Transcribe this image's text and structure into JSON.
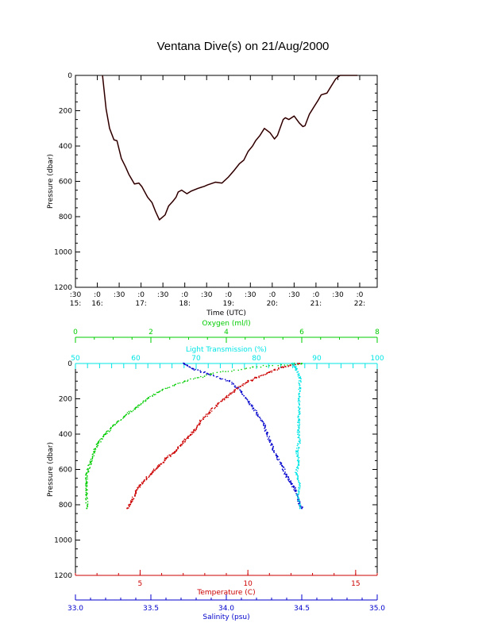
{
  "page": {
    "title": "Ventana Dive(s) on 21/Aug/2000"
  },
  "chart_data": [
    {
      "type": "line",
      "title": "Ventana Dive(s) on 21/Aug/2000",
      "xlabel": "Time (UTC)",
      "ylabel": "Pressure (dbar)",
      "x_unit": "hours UTC",
      "xlim": [
        15.5,
        22.4
      ],
      "ylim": [
        1200,
        0
      ],
      "y_ticks": [
        "0",
        "200",
        "400",
        "600",
        "800",
        "1000",
        "1200"
      ],
      "x_ticks": [
        {
          "x": 15.5,
          "top": ":30",
          "bottom": "15:"
        },
        {
          "x": 16.0,
          "top": ":0",
          "bottom": "16:"
        },
        {
          "x": 16.5,
          "top": ":30",
          "bottom": ""
        },
        {
          "x": 17.0,
          "top": ":0",
          "bottom": "17:"
        },
        {
          "x": 17.5,
          "top": ":30",
          "bottom": ""
        },
        {
          "x": 18.0,
          "top": ":0",
          "bottom": "18:"
        },
        {
          "x": 18.5,
          "top": ":30",
          "bottom": ""
        },
        {
          "x": 19.0,
          "top": ":0",
          "bottom": "19:"
        },
        {
          "x": 19.5,
          "top": ":30",
          "bottom": ""
        },
        {
          "x": 20.0,
          "top": ":0",
          "bottom": "20:"
        },
        {
          "x": 20.5,
          "top": ":30",
          "bottom": ""
        },
        {
          "x": 21.0,
          "top": ":0",
          "bottom": "21:"
        },
        {
          "x": 21.5,
          "top": ":30",
          "bottom": ""
        },
        {
          "x": 22.0,
          "top": ":0",
          "bottom": "22:"
        }
      ],
      "grid": false,
      "series": [
        {
          "color": "#000000",
          "x": [
            16.12,
            16.2,
            16.28,
            16.38,
            16.45,
            16.55,
            16.65,
            16.72,
            16.85,
            16.95,
            17.02,
            17.15,
            17.25,
            17.33,
            17.42,
            17.55,
            17.63,
            17.72,
            17.8,
            17.85,
            17.93,
            18.05,
            18.15,
            18.3,
            18.45,
            18.52,
            18.7,
            18.85,
            19.0,
            19.12,
            19.25,
            19.35,
            19.45,
            19.55,
            19.62,
            19.72,
            19.82,
            19.95,
            20.05,
            20.12,
            20.25,
            20.3,
            20.38,
            20.5,
            20.62,
            20.7,
            20.75,
            20.85,
            20.95,
            21.05,
            21.12,
            21.25,
            21.35,
            21.45,
            21.55,
            21.65,
            21.75,
            21.85,
            21.95
          ],
          "y": [
            0,
            190,
            300,
            365,
            370,
            470,
            520,
            560,
            615,
            610,
            630,
            690,
            720,
            770,
            818,
            790,
            740,
            715,
            690,
            660,
            650,
            670,
            655,
            640,
            628,
            620,
            605,
            610,
            575,
            540,
            500,
            480,
            430,
            400,
            370,
            340,
            300,
            325,
            360,
            340,
            250,
            240,
            250,
            230,
            270,
            290,
            285,
            220,
            180,
            140,
            110,
            100,
            60,
            20,
            0,
            0,
            0,
            0,
            0
          ]
        }
      ]
    },
    {
      "type": "scatter",
      "ylabel": "Pressure (dbar)",
      "ylim": [
        1200,
        0
      ],
      "y_ticks": [
        "0",
        "200",
        "400",
        "600",
        "800",
        "1000",
        "1200"
      ],
      "grid": false,
      "axes": [
        {
          "id": "oxygen",
          "label": "Oxygen (ml/l)",
          "position": "top",
          "color": "#00cc00",
          "range": [
            0,
            8
          ],
          "ticks": [
            "0",
            "2",
            "4",
            "6",
            "8"
          ]
        },
        {
          "id": "transmission",
          "label": "Light Transmission (%)",
          "position": "top-inner",
          "color": "#00e5e5",
          "range": [
            50,
            100
          ],
          "ticks": [
            "50",
            "60",
            "70",
            "80",
            "90",
            "100"
          ]
        },
        {
          "id": "temperature",
          "label": "Temperature (C)",
          "position": "bottom",
          "color": "#cc0000",
          "range": [
            2,
            16
          ],
          "ticks": [
            "5",
            "10",
            "15"
          ]
        },
        {
          "id": "salinity",
          "label": "Salinity (psu)",
          "position": "bottom-outer",
          "color": "#0000cc",
          "range": [
            33.0,
            35.0
          ],
          "ticks": [
            "33.0",
            "33.5",
            "34.0",
            "34.5",
            "35.0"
          ]
        }
      ],
      "series": [
        {
          "axis": "temperature",
          "color": "#cc0000",
          "x": [
            12.4,
            11.6,
            11.0,
            10.4,
            9.9,
            9.4,
            9.0,
            8.6,
            8.2,
            7.8,
            7.5,
            7.2,
            6.9,
            6.6,
            6.2,
            5.9,
            5.6,
            5.3,
            5.0,
            4.8,
            4.6,
            4.4
          ],
          "y": [
            0,
            20,
            50,
            80,
            110,
            150,
            190,
            230,
            280,
            330,
            380,
            420,
            460,
            500,
            540,
            580,
            610,
            650,
            690,
            730,
            780,
            820
          ]
        },
        {
          "axis": "salinity",
          "color": "#0000cc",
          "x": [
            33.72,
            33.78,
            33.88,
            34.02,
            34.1,
            34.15,
            34.2,
            34.25,
            34.27,
            34.3,
            34.33,
            34.37,
            34.4,
            34.43,
            34.46,
            34.48,
            34.5
          ],
          "y": [
            0,
            30,
            60,
            100,
            160,
            220,
            280,
            340,
            400,
            460,
            520,
            580,
            640,
            680,
            720,
            780,
            820
          ]
        },
        {
          "axis": "oxygen",
          "color": "#00cc00",
          "x": [
            6.0,
            4.7,
            3.6,
            2.9,
            2.3,
            1.9,
            1.6,
            1.3,
            1.0,
            0.8,
            0.6,
            0.5,
            0.4,
            0.3,
            0.3,
            0.3,
            0.3
          ],
          "y": [
            0,
            20,
            60,
            100,
            150,
            200,
            250,
            300,
            350,
            400,
            450,
            500,
            560,
            620,
            680,
            740,
            820
          ]
        },
        {
          "axis": "transmission",
          "color": "#00e5e5",
          "x": [
            86.0,
            86.6,
            87.2,
            87.2,
            87.0,
            87.1,
            87.0,
            86.9,
            87.1,
            86.7,
            87.0,
            86.6,
            87.2,
            86.8,
            87.2
          ],
          "y": [
            0,
            30,
            80,
            140,
            200,
            260,
            320,
            380,
            440,
            500,
            560,
            620,
            680,
            740,
            820
          ]
        }
      ]
    }
  ]
}
